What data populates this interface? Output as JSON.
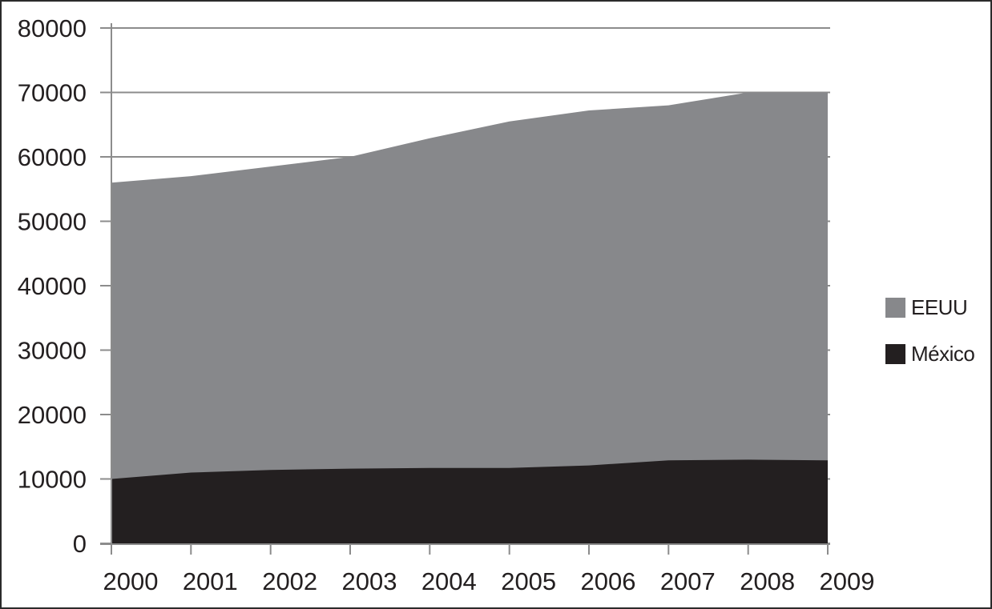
{
  "chart_data": {
    "type": "area",
    "stacked": true,
    "title": "",
    "xlabel": "",
    "ylabel": "",
    "categories": [
      "2000",
      "2001",
      "2002",
      "2003",
      "2004",
      "2005",
      "2006",
      "2007",
      "2008",
      "2009"
    ],
    "series": [
      {
        "name": "México",
        "color": "#231f20",
        "values": [
          10000,
          11000,
          11400,
          11600,
          11700,
          11700,
          12100,
          12900,
          13000,
          12900
        ]
      },
      {
        "name": "EEUU",
        "color": "#87888b",
        "values": [
          46000,
          46000,
          47100,
          48400,
          51200,
          53800,
          55100,
          55100,
          57000,
          57100
        ]
      }
    ],
    "stacked_totals": [
      56000,
      57000,
      58500,
      60000,
      62900,
      65500,
      67200,
      68000,
      70000,
      70000
    ],
    "ylim": [
      0,
      80000
    ],
    "ytick_step": 10000,
    "yticks": [
      0,
      10000,
      20000,
      30000,
      40000,
      50000,
      60000,
      70000,
      80000
    ],
    "grid": true,
    "legend_position": "right"
  },
  "legend": {
    "items": [
      {
        "label": "EEUU",
        "color": "#87888b"
      },
      {
        "label": "México",
        "color": "#231f20"
      }
    ]
  },
  "colors": {
    "axis": "#8c8c8c",
    "gridline": "#8c8c8c",
    "text": "#231f20",
    "background": "#ffffff",
    "eeuu_fill": "#87888b",
    "mexico_fill": "#231f20"
  }
}
